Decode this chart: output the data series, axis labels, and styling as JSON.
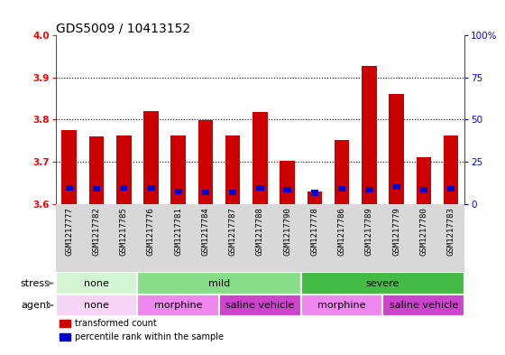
{
  "title": "GDS5009 / 10413152",
  "samples": [
    "GSM1217777",
    "GSM1217782",
    "GSM1217785",
    "GSM1217776",
    "GSM1217781",
    "GSM1217784",
    "GSM1217787",
    "GSM1217788",
    "GSM1217790",
    "GSM1217778",
    "GSM1217786",
    "GSM1217789",
    "GSM1217779",
    "GSM1217780",
    "GSM1217783"
  ],
  "red_values": [
    3.775,
    3.76,
    3.763,
    3.82,
    3.763,
    3.798,
    3.763,
    3.818,
    3.703,
    3.63,
    3.752,
    3.928,
    3.862,
    3.71,
    3.763
  ],
  "blue_values": [
    3.637,
    3.635,
    3.637,
    3.638,
    3.63,
    3.628,
    3.627,
    3.637,
    3.634,
    3.626,
    3.636,
    3.633,
    3.64,
    3.633,
    3.636
  ],
  "ymin": 3.6,
  "ymax": 4.0,
  "yticks": [
    3.6,
    3.7,
    3.8,
    3.9,
    4.0
  ],
  "right_yticks": [
    0,
    25,
    50,
    75,
    100
  ],
  "right_ytick_labels": [
    "0",
    "25",
    "50",
    "75",
    "100%"
  ],
  "stress_groups": [
    {
      "label": "none",
      "start": 0,
      "end": 3,
      "color": "#d4f5d4"
    },
    {
      "label": "mild",
      "start": 3,
      "end": 9,
      "color": "#88dd88"
    },
    {
      "label": "severe",
      "start": 9,
      "end": 15,
      "color": "#44bb44"
    }
  ],
  "agent_groups": [
    {
      "label": "none",
      "start": 0,
      "end": 3,
      "color": "#f5d4f5"
    },
    {
      "label": "morphine",
      "start": 3,
      "end": 6,
      "color": "#ee88ee"
    },
    {
      "label": "saline vehicle",
      "start": 6,
      "end": 9,
      "color": "#cc44cc"
    },
    {
      "label": "morphine",
      "start": 9,
      "end": 12,
      "color": "#ee88ee"
    },
    {
      "label": "saline vehicle",
      "start": 12,
      "end": 15,
      "color": "#cc44cc"
    }
  ],
  "bar_width": 0.55,
  "red_color": "#cc0000",
  "blue_color": "#0000cc",
  "title_fontsize": 10,
  "tick_fontsize": 6.5,
  "label_fontsize": 8,
  "grid_color": "black",
  "grid_style": "dotted",
  "xtick_bg": "#d8d8d8"
}
